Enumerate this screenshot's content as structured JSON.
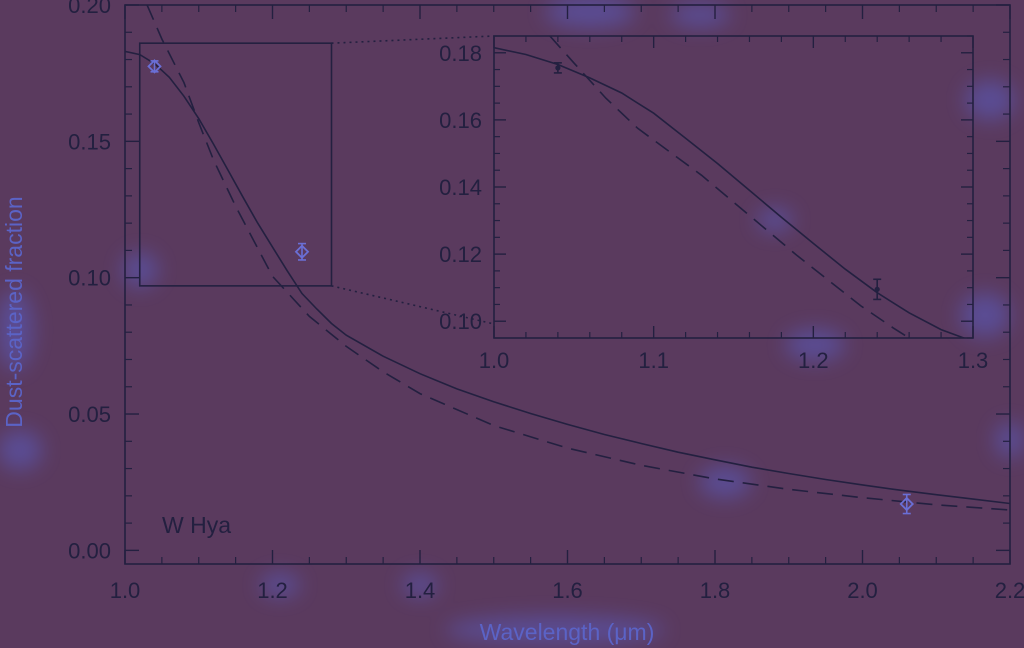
{
  "chart_data": [
    {
      "type": "line",
      "title": "",
      "xlabel": "Wavelength (μm)",
      "ylabel": "Dust-scattered fraction",
      "xlim": [
        1.0,
        2.2
      ],
      "ylim": [
        -0.005,
        0.2
      ],
      "xticks": [
        1.0,
        1.2,
        1.4,
        1.6,
        1.8,
        2.0,
        2.2
      ],
      "xtick_labels": [
        "1.0",
        "1.2",
        "1.4",
        "1.6",
        "1.8",
        "2.0",
        "2.2"
      ],
      "yticks": [
        0.0,
        0.05,
        0.1,
        0.15,
        0.2
      ],
      "ytick_labels": [
        "0.00",
        "0.05",
        "0.10",
        "0.15",
        "0.20"
      ],
      "annotation": "W Hya",
      "grid": false,
      "series": [
        {
          "style": "solid",
          "x": [
            1.0,
            1.02,
            1.04,
            1.06,
            1.08,
            1.1,
            1.12,
            1.14,
            1.16,
            1.18,
            1.2,
            1.22,
            1.24,
            1.26,
            1.28,
            1.3,
            1.35,
            1.4,
            1.45,
            1.5,
            1.55,
            1.6,
            1.65,
            1.7,
            1.75,
            1.8,
            1.85,
            1.9,
            1.95,
            2.0,
            2.05,
            2.1,
            2.15,
            2.2
          ],
          "y": [
            0.183,
            0.1818,
            0.1785,
            0.1735,
            0.1665,
            0.1583,
            0.149,
            0.1393,
            0.1295,
            0.12,
            0.1112,
            0.1025,
            0.0942,
            0.0885,
            0.0832,
            0.0789,
            0.0712,
            0.0648,
            0.0592,
            0.0545,
            0.0502,
            0.0462,
            0.0425,
            0.0392,
            0.036,
            0.0332,
            0.0305,
            0.0282,
            0.026,
            0.024,
            0.0221,
            0.0204,
            0.0188,
            0.0172
          ]
        },
        {
          "style": "dashed",
          "x": [
            1.03,
            1.05,
            1.08,
            1.1,
            1.12,
            1.15,
            1.2,
            1.25,
            1.3,
            1.35,
            1.4,
            1.5,
            1.6,
            1.7,
            1.8,
            1.9,
            2.0,
            2.1,
            2.2
          ],
          "y": [
            0.2,
            0.1875,
            0.1715,
            0.1568,
            0.1432,
            0.1262,
            0.1005,
            0.0858,
            0.0748,
            0.0655,
            0.0575,
            0.0458,
            0.0375,
            0.0312,
            0.0262,
            0.0224,
            0.0193,
            0.0167,
            0.0148
          ]
        }
      ],
      "points": [
        {
          "x": 1.04,
          "y": 0.1775,
          "err": 0.002,
          "marker": "diamond"
        },
        {
          "x": 1.24,
          "y": 0.1095,
          "err": 0.003,
          "marker": "diamond"
        },
        {
          "x": 2.06,
          "y": 0.017,
          "err": 0.0035,
          "marker": "diamond"
        }
      ],
      "zoom_box": {
        "x": [
          1.02,
          1.28
        ],
        "y": [
          0.097,
          0.186
        ]
      }
    },
    {
      "type": "line",
      "title": "",
      "xlabel": "",
      "ylabel": "",
      "xlim": [
        1.0,
        1.3
      ],
      "ylim": [
        0.095,
        0.185
      ],
      "xticks": [
        1.0,
        1.1,
        1.2,
        1.3
      ],
      "xtick_labels": [
        "1.0",
        "1.1",
        "1.2",
        "1.3"
      ],
      "yticks": [
        0.1,
        0.12,
        0.14,
        0.16,
        0.18
      ],
      "ytick_labels": [
        "0.10",
        "0.12",
        "0.14",
        "0.16",
        "0.18"
      ],
      "grid": false,
      "series": [
        {
          "style": "solid",
          "x": [
            1.0,
            1.02,
            1.04,
            1.06,
            1.08,
            1.1,
            1.12,
            1.14,
            1.16,
            1.18,
            1.2,
            1.22,
            1.24,
            1.26,
            1.28,
            1.3
          ],
          "y": [
            0.1815,
            0.1795,
            0.1765,
            0.1725,
            0.168,
            0.162,
            0.1545,
            0.147,
            0.139,
            0.131,
            0.1232,
            0.1155,
            0.1085,
            0.1025,
            0.0975,
            0.094
          ]
        },
        {
          "style": "dashed",
          "x": [
            1.035,
            1.05,
            1.07,
            1.09,
            1.11,
            1.13,
            1.15,
            1.17,
            1.19,
            1.21,
            1.23,
            1.25,
            1.27
          ],
          "y": [
            0.185,
            0.177,
            0.1665,
            0.1575,
            0.1505,
            0.1435,
            0.1355,
            0.1275,
            0.1195,
            0.112,
            0.1045,
            0.098,
            0.092
          ]
        }
      ],
      "points": [
        {
          "x": 1.04,
          "y": 0.1755,
          "err": 0.0015,
          "marker": "dot"
        },
        {
          "x": 1.24,
          "y": 0.1095,
          "err": 0.003,
          "marker": "dot"
        }
      ]
    }
  ],
  "colors": {
    "background": "#5a3a5e",
    "axes": "#232040",
    "axis_title": "#5b63c6",
    "marker": "#6a6fd6"
  }
}
